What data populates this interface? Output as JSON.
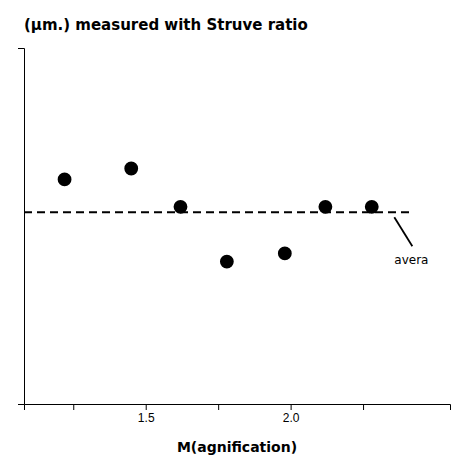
{
  "chart_data": {
    "type": "scatter",
    "title": "(μm.) measured with Struve ratio",
    "x_label": "M(agnification)",
    "x": [
      1.22,
      1.45,
      1.62,
      1.78,
      1.98,
      2.12,
      2.28
    ],
    "values": [
      0.82,
      0.86,
      0.72,
      0.52,
      0.55,
      0.72,
      0.72
    ],
    "color": "#000000",
    "marker": "circle",
    "xlim": [
      1.08,
      2.55
    ],
    "ylim": [
      0.0,
      1.3
    ],
    "xticks": [
      {
        "value": 1.25,
        "label": null
      },
      1.5,
      {
        "value": 2.0,
        "label": "2.0"
      },
      {
        "value": 1.75,
        "label": null
      },
      {
        "value": 2.25,
        "label": null
      }
    ],
    "tick_labels": "x",
    "reference_line": {
      "value": 0.7,
      "x": [
        1.08,
        2.42
      ],
      "line_style": "dashed",
      "color": "#000000"
    },
    "annotation": "avera"
  }
}
